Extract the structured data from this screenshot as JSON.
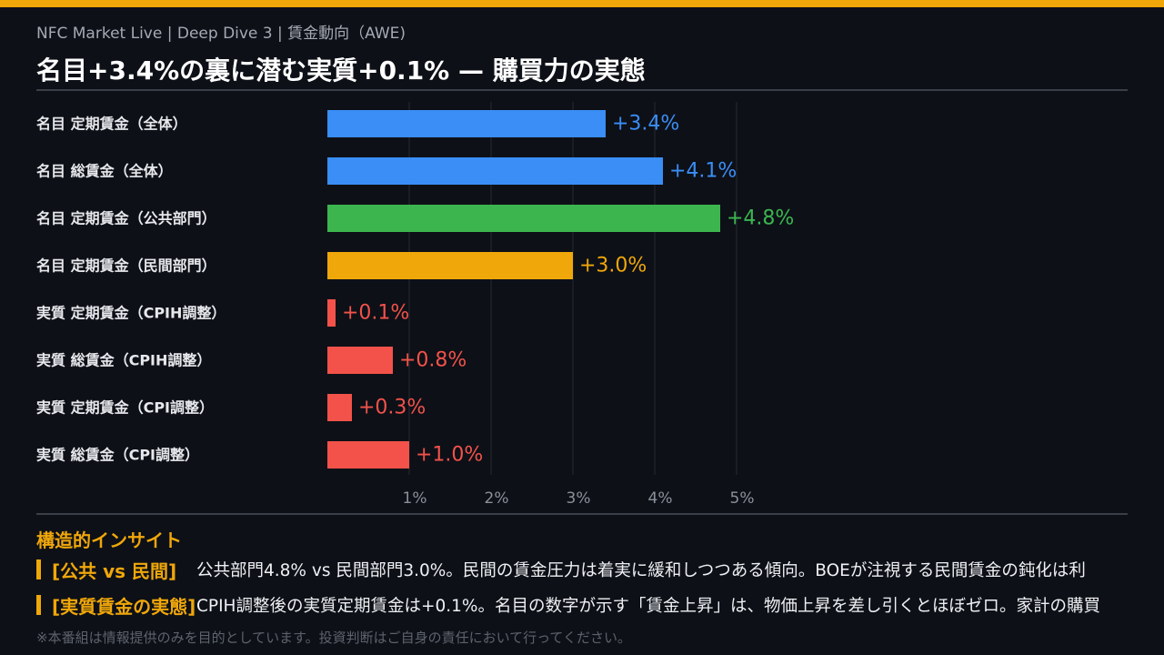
{
  "header": {
    "breadcrumb": "NFC Market Live  |  Deep Dive 3  |  賃金動向（AWE)",
    "title": "名目+3.4%の裏に潜む実質+0.1% — 購買力の実態"
  },
  "chart_data": {
    "type": "bar",
    "orientation": "horizontal",
    "categories": [
      "名目 定期賃金（全体）",
      "名目 総賃金（全体）",
      "名目 定期賃金（公共部門）",
      "名目 定期賃金（民間部門）",
      "実質 定期賃金（CPIH調整）",
      "実質 総賃金（CPIH調整）",
      "実質 定期賃金（CPI調整）",
      "実質 総賃金（CPI調整）"
    ],
    "values": [
      3.4,
      4.1,
      4.8,
      3.0,
      0.1,
      0.8,
      0.3,
      1.0
    ],
    "value_labels": [
      "+3.4%",
      "+4.1%",
      "+4.8%",
      "+3.0%",
      "+0.1%",
      "+0.8%",
      "+0.3%",
      "+1.0%"
    ],
    "colors": [
      "#3a8ef6",
      "#3a8ef6",
      "#3cb54f",
      "#f0a70a",
      "#f2524a",
      "#f2524a",
      "#f2524a",
      "#f2524a"
    ],
    "xlim": [
      0,
      5
    ],
    "ticks": [
      1,
      2,
      3,
      4,
      5
    ],
    "tick_labels": [
      "1%",
      "2%",
      "3%",
      "4%",
      "5%"
    ],
    "grid": true
  },
  "insights": {
    "heading": "構造的インサイト",
    "items": [
      {
        "tag": "[公共 vs 民間]",
        "text": "公共部門4.8% vs 民間部門3.0%。民間の賃金圧力は着実に緩和しつつある傾向。BOEが注視する民間賃金の鈍化は利"
      },
      {
        "tag": "[実質賃金の実態]",
        "text": "CPIH調整後の実質定期賃金は+0.1%。名目の数字が示す「賃金上昇」は、物価上昇を差し引くとほぼゼロ。家計の購買"
      }
    ]
  },
  "footer": {
    "disclaimer": "※本番組は情報提供のみを目的としています。投資判断はご自身の責任において行ってください。"
  }
}
